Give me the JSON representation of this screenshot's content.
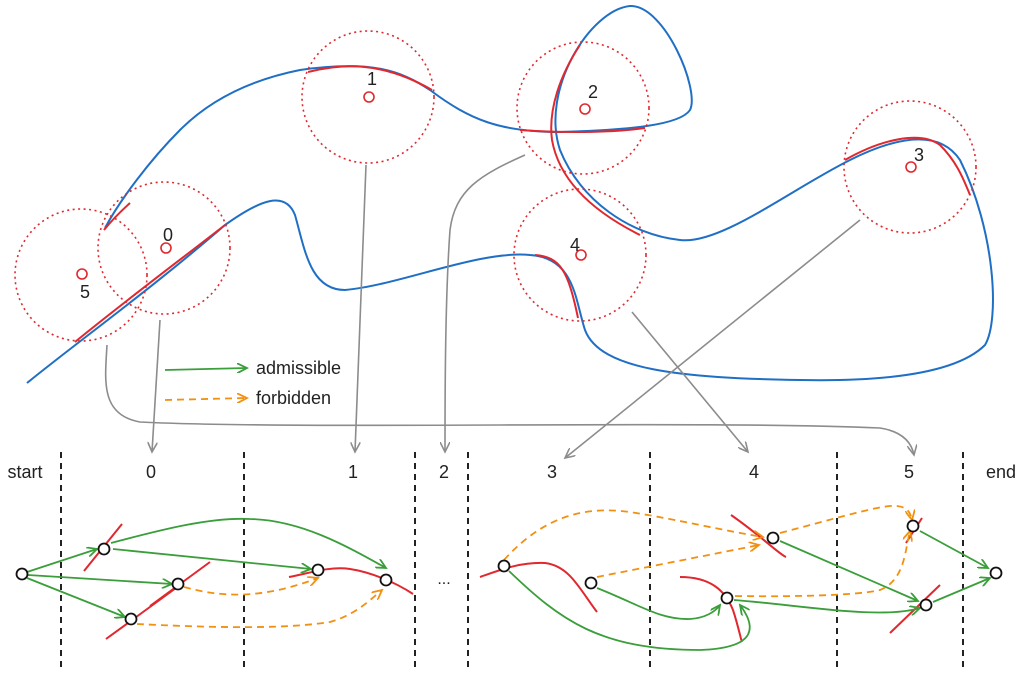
{
  "zones": [
    {
      "label": "5"
    },
    {
      "label": "0"
    },
    {
      "label": "1"
    },
    {
      "label": "2"
    },
    {
      "label": "3"
    },
    {
      "label": "4"
    }
  ],
  "legend": {
    "admissible": "admissible",
    "forbidden": "forbidden"
  },
  "columns": {
    "start": "start",
    "c0": "0",
    "c1": "1",
    "c2": "2",
    "c3": "3",
    "c4": "4",
    "c5": "5",
    "end": "end",
    "ellipsis": "..."
  },
  "colors": {
    "path": "#1f6fc5",
    "zone": "#e0282e",
    "admissible": "#3a9e3a",
    "forbidden": "#f29010",
    "mapping": "#8c8c8c"
  }
}
